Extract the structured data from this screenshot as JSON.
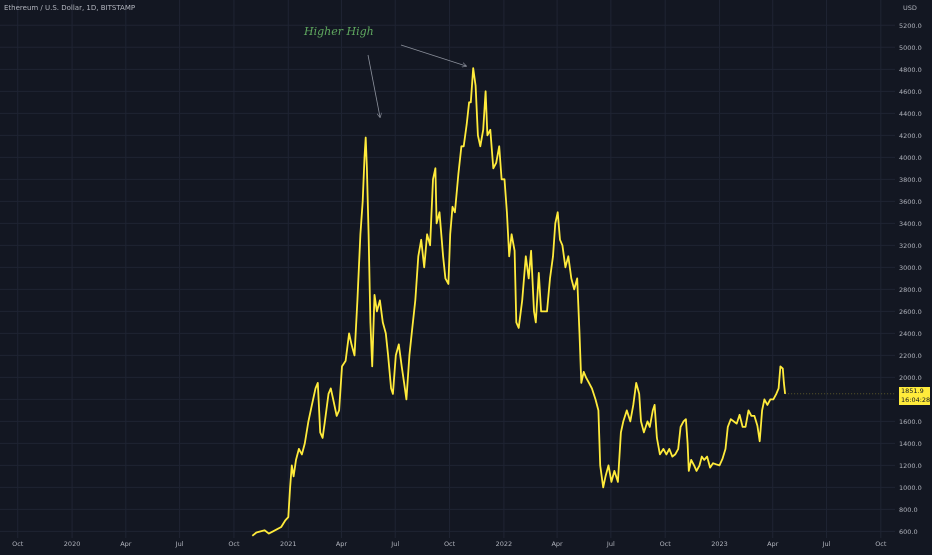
{
  "title": "Ethereum / U.S. Dollar, 1D, BITSTAMP",
  "annotation": "Higher High",
  "last_price": {
    "value": "1851.9",
    "countdown": "16:04:28"
  },
  "colors": {
    "background": "#131722",
    "line": "#ffeb3b",
    "grid": "#1f2433",
    "axis_text": "#b2b5be",
    "annotation": "#5fa85f",
    "arrow": "#8a8f9a"
  },
  "chart_data": {
    "type": "line",
    "title": "Ethereum / U.S. Dollar, 1D, BITSTAMP",
    "ylabel": "USD",
    "xlim": [
      "2019-09-01",
      "2023-10-25"
    ],
    "ylim": [
      540,
      5430
    ],
    "grid": true,
    "y_ticks": [
      600,
      800,
      1000,
      1200,
      1400,
      1600,
      1800,
      2000,
      2200,
      2400,
      2600,
      2800,
      3000,
      3200,
      3400,
      3600,
      3800,
      4000,
      4200,
      4400,
      4600,
      4800,
      5000,
      5200
    ],
    "x_ticks": [
      {
        "label": "Oct",
        "date": "2019-10-01"
      },
      {
        "label": "2020",
        "date": "2020-01-01"
      },
      {
        "label": "Apr",
        "date": "2020-04-01"
      },
      {
        "label": "Jul",
        "date": "2020-07-01"
      },
      {
        "label": "Oct",
        "date": "2020-10-01"
      },
      {
        "label": "2021",
        "date": "2021-01-01"
      },
      {
        "label": "Apr",
        "date": "2021-04-01"
      },
      {
        "label": "Jul",
        "date": "2021-07-01"
      },
      {
        "label": "Oct",
        "date": "2021-10-01"
      },
      {
        "label": "2022",
        "date": "2022-01-01"
      },
      {
        "label": "Apr",
        "date": "2022-04-01"
      },
      {
        "label": "Jul",
        "date": "2022-07-01"
      },
      {
        "label": "Oct",
        "date": "2022-10-01"
      },
      {
        "label": "2023",
        "date": "2023-01-01"
      },
      {
        "label": "Apr",
        "date": "2023-04-01"
      },
      {
        "label": "Jul",
        "date": "2023-07-01"
      },
      {
        "label": "Oct",
        "date": "2023-10-01"
      }
    ],
    "series": [
      {
        "points": [
          [
            "2020-11-01",
            560
          ],
          [
            "2020-11-08",
            590
          ],
          [
            "2020-11-15",
            600
          ],
          [
            "2020-11-22",
            610
          ],
          [
            "2020-11-29",
            580
          ],
          [
            "2020-12-06",
            600
          ],
          [
            "2020-12-13",
            620
          ],
          [
            "2020-12-20",
            640
          ],
          [
            "2020-12-27",
            700
          ],
          [
            "2021-01-01",
            730
          ],
          [
            "2021-01-04",
            1000
          ],
          [
            "2021-01-07",
            1200
          ],
          [
            "2021-01-10",
            1100
          ],
          [
            "2021-01-14",
            1250
          ],
          [
            "2021-01-19",
            1350
          ],
          [
            "2021-01-24",
            1300
          ],
          [
            "2021-01-29",
            1400
          ],
          [
            "2021-02-04",
            1600
          ],
          [
            "2021-02-10",
            1750
          ],
          [
            "2021-02-16",
            1900
          ],
          [
            "2021-02-20",
            1950
          ],
          [
            "2021-02-24",
            1500
          ],
          [
            "2021-02-28",
            1450
          ],
          [
            "2021-03-04",
            1600
          ],
          [
            "2021-03-10",
            1850
          ],
          [
            "2021-03-14",
            1900
          ],
          [
            "2021-03-18",
            1800
          ],
          [
            "2021-03-24",
            1650
          ],
          [
            "2021-03-28",
            1700
          ],
          [
            "2021-04-02",
            2100
          ],
          [
            "2021-04-08",
            2150
          ],
          [
            "2021-04-14",
            2400
          ],
          [
            "2021-04-18",
            2300
          ],
          [
            "2021-04-23",
            2200
          ],
          [
            "2021-04-28",
            2700
          ],
          [
            "2021-05-03",
            3300
          ],
          [
            "2021-05-07",
            3600
          ],
          [
            "2021-05-10",
            4000
          ],
          [
            "2021-05-12",
            4180
          ],
          [
            "2021-05-14",
            3900
          ],
          [
            "2021-05-17",
            3300
          ],
          [
            "2021-05-20",
            2500
          ],
          [
            "2021-05-23",
            2100
          ],
          [
            "2021-05-27",
            2750
          ],
          [
            "2021-05-31",
            2600
          ],
          [
            "2021-06-05",
            2700
          ],
          [
            "2021-06-10",
            2500
          ],
          [
            "2021-06-15",
            2400
          ],
          [
            "2021-06-19",
            2200
          ],
          [
            "2021-06-24",
            1900
          ],
          [
            "2021-06-27",
            1850
          ],
          [
            "2021-07-02",
            2200
          ],
          [
            "2021-07-07",
            2300
          ],
          [
            "2021-07-12",
            2100
          ],
          [
            "2021-07-16",
            1950
          ],
          [
            "2021-07-20",
            1800
          ],
          [
            "2021-07-25",
            2200
          ],
          [
            "2021-07-30",
            2450
          ],
          [
            "2021-08-04",
            2700
          ],
          [
            "2021-08-09",
            3100
          ],
          [
            "2021-08-14",
            3250
          ],
          [
            "2021-08-19",
            3000
          ],
          [
            "2021-08-24",
            3300
          ],
          [
            "2021-08-29",
            3200
          ],
          [
            "2021-09-03",
            3800
          ],
          [
            "2021-09-07",
            3900
          ],
          [
            "2021-09-09",
            3400
          ],
          [
            "2021-09-14",
            3500
          ],
          [
            "2021-09-20",
            3100
          ],
          [
            "2021-09-24",
            2900
          ],
          [
            "2021-09-29",
            2850
          ],
          [
            "2021-10-02",
            3300
          ],
          [
            "2021-10-06",
            3550
          ],
          [
            "2021-10-10",
            3500
          ],
          [
            "2021-10-16",
            3850
          ],
          [
            "2021-10-21",
            4100
          ],
          [
            "2021-10-25",
            4100
          ],
          [
            "2021-10-30",
            4300
          ],
          [
            "2021-11-03",
            4500
          ],
          [
            "2021-11-06",
            4500
          ],
          [
            "2021-11-10",
            4810
          ],
          [
            "2021-11-14",
            4650
          ],
          [
            "2021-11-18",
            4200
          ],
          [
            "2021-11-22",
            4100
          ],
          [
            "2021-11-27",
            4250
          ],
          [
            "2021-12-01",
            4600
          ],
          [
            "2021-12-04",
            4200
          ],
          [
            "2021-12-09",
            4250
          ],
          [
            "2021-12-14",
            3900
          ],
          [
            "2021-12-19",
            3950
          ],
          [
            "2021-12-24",
            4100
          ],
          [
            "2021-12-28",
            3800
          ],
          [
            "2022-01-02",
            3800
          ],
          [
            "2022-01-06",
            3500
          ],
          [
            "2022-01-10",
            3100
          ],
          [
            "2022-01-14",
            3300
          ],
          [
            "2022-01-19",
            3150
          ],
          [
            "2022-01-22",
            2500
          ],
          [
            "2022-01-26",
            2450
          ],
          [
            "2022-02-01",
            2700
          ],
          [
            "2022-02-07",
            3100
          ],
          [
            "2022-02-12",
            2900
          ],
          [
            "2022-02-16",
            3150
          ],
          [
            "2022-02-21",
            2600
          ],
          [
            "2022-02-24",
            2500
          ],
          [
            "2022-03-01",
            2950
          ],
          [
            "2022-03-05",
            2600
          ],
          [
            "2022-03-10",
            2600
          ],
          [
            "2022-03-15",
            2600
          ],
          [
            "2022-03-20",
            2900
          ],
          [
            "2022-03-25",
            3100
          ],
          [
            "2022-03-29",
            3400
          ],
          [
            "2022-04-02",
            3500
          ],
          [
            "2022-04-06",
            3250
          ],
          [
            "2022-04-10",
            3200
          ],
          [
            "2022-04-15",
            3000
          ],
          [
            "2022-04-20",
            3100
          ],
          [
            "2022-04-25",
            2900
          ],
          [
            "2022-04-30",
            2800
          ],
          [
            "2022-05-05",
            2900
          ],
          [
            "2022-05-09",
            2400
          ],
          [
            "2022-05-12",
            1950
          ],
          [
            "2022-05-16",
            2050
          ],
          [
            "2022-05-20",
            2000
          ],
          [
            "2022-05-25",
            1950
          ],
          [
            "2022-05-30",
            1900
          ],
          [
            "2022-06-05",
            1800
          ],
          [
            "2022-06-10",
            1700
          ],
          [
            "2022-06-13",
            1200
          ],
          [
            "2022-06-18",
            1000
          ],
          [
            "2022-06-22",
            1100
          ],
          [
            "2022-06-27",
            1200
          ],
          [
            "2022-07-02",
            1050
          ],
          [
            "2022-07-07",
            1150
          ],
          [
            "2022-07-13",
            1050
          ],
          [
            "2022-07-18",
            1500
          ],
          [
            "2022-07-22",
            1600
          ],
          [
            "2022-07-28",
            1700
          ],
          [
            "2022-08-03",
            1600
          ],
          [
            "2022-08-08",
            1750
          ],
          [
            "2022-08-13",
            1950
          ],
          [
            "2022-08-18",
            1850
          ],
          [
            "2022-08-21",
            1600
          ],
          [
            "2022-08-26",
            1500
          ],
          [
            "2022-09-01",
            1600
          ],
          [
            "2022-09-05",
            1550
          ],
          [
            "2022-09-10",
            1700
          ],
          [
            "2022-09-13",
            1750
          ],
          [
            "2022-09-17",
            1450
          ],
          [
            "2022-09-22",
            1300
          ],
          [
            "2022-09-28",
            1350
          ],
          [
            "2022-10-03",
            1300
          ],
          [
            "2022-10-08",
            1350
          ],
          [
            "2022-10-13",
            1280
          ],
          [
            "2022-10-18",
            1300
          ],
          [
            "2022-10-23",
            1350
          ],
          [
            "2022-10-27",
            1550
          ],
          [
            "2022-11-01",
            1600
          ],
          [
            "2022-11-05",
            1620
          ],
          [
            "2022-11-08",
            1400
          ],
          [
            "2022-11-10",
            1150
          ],
          [
            "2022-11-14",
            1250
          ],
          [
            "2022-11-19",
            1200
          ],
          [
            "2022-11-23",
            1150
          ],
          [
            "2022-11-28",
            1200
          ],
          [
            "2022-12-02",
            1280
          ],
          [
            "2022-12-06",
            1250
          ],
          [
            "2022-12-11",
            1280
          ],
          [
            "2022-12-16",
            1180
          ],
          [
            "2022-12-21",
            1220
          ],
          [
            "2022-12-26",
            1210
          ],
          [
            "2023-01-01",
            1200
          ],
          [
            "2023-01-06",
            1260
          ],
          [
            "2023-01-11",
            1350
          ],
          [
            "2023-01-15",
            1550
          ],
          [
            "2023-01-20",
            1620
          ],
          [
            "2023-01-25",
            1600
          ],
          [
            "2023-01-30",
            1580
          ],
          [
            "2023-02-04",
            1660
          ],
          [
            "2023-02-09",
            1550
          ],
          [
            "2023-02-14",
            1550
          ],
          [
            "2023-02-19",
            1700
          ],
          [
            "2023-02-24",
            1650
          ],
          [
            "2023-03-01",
            1650
          ],
          [
            "2023-03-06",
            1560
          ],
          [
            "2023-03-10",
            1420
          ],
          [
            "2023-03-14",
            1700
          ],
          [
            "2023-03-18",
            1800
          ],
          [
            "2023-03-23",
            1750
          ],
          [
            "2023-03-28",
            1800
          ],
          [
            "2023-04-02",
            1800
          ],
          [
            "2023-04-07",
            1850
          ],
          [
            "2023-04-11",
            1900
          ],
          [
            "2023-04-14",
            2100
          ],
          [
            "2023-04-18",
            2080
          ],
          [
            "2023-04-20",
            1950
          ],
          [
            "2023-04-22",
            1850
          ]
        ]
      }
    ]
  }
}
